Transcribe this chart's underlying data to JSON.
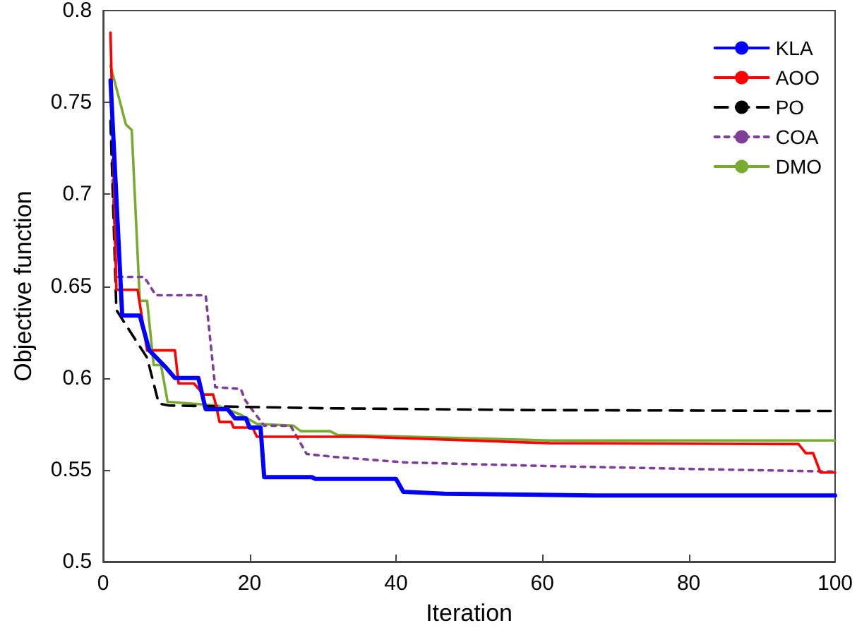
{
  "chart_data": {
    "type": "line",
    "xlabel": "Iteration",
    "ylabel": "Objective function",
    "xlim": [
      0,
      100
    ],
    "xticks": [
      0,
      20,
      40,
      60,
      80,
      100
    ],
    "ylim": [
      0.5,
      0.8
    ],
    "yticks": [
      0.5,
      0.55,
      0.6,
      0.65,
      0.7,
      0.75,
      0.8
    ],
    "grid": false,
    "legend": "top right",
    "marker": "none",
    "series": [
      {
        "name": "KLA",
        "color": "#0000ff",
        "line_style": "solid",
        "x": [
          1,
          2.6,
          5,
          6.3,
          8.5,
          9.8,
          13,
          14,
          17,
          18,
          19.5,
          20,
          21.5,
          22,
          28.5,
          29,
          40,
          41,
          46.6,
          67,
          100
        ],
        "values": [
          0.762,
          0.634,
          0.634,
          0.615,
          0.606,
          0.6,
          0.6,
          0.583,
          0.583,
          0.578,
          0.578,
          0.573,
          0.573,
          0.546,
          0.546,
          0.545,
          0.545,
          0.538,
          0.537,
          0.536,
          0.536
        ]
      },
      {
        "name": "AOO",
        "color": "#ff0000",
        "line_style": "solid",
        "x": [
          1,
          1.8,
          4.7,
          6,
          9.8,
          10.3,
          12.4,
          13.7,
          15,
          15.3,
          15.9,
          17.5,
          17.8,
          20.4,
          21,
          35.5,
          61,
          95,
          96,
          97,
          98,
          100
        ],
        "values": [
          0.788,
          0.648,
          0.648,
          0.615,
          0.615,
          0.597,
          0.597,
          0.591,
          0.591,
          0.587,
          0.576,
          0.576,
          0.573,
          0.573,
          0.568,
          0.568,
          0.5645,
          0.564,
          0.559,
          0.559,
          0.5485,
          0.5485
        ]
      },
      {
        "name": "PO",
        "color": "#000000",
        "line_style": "dashed",
        "x": [
          1,
          1.8,
          3.4,
          6,
          7.6,
          9,
          30,
          58.7,
          100
        ],
        "values": [
          0.74,
          0.637,
          0.627,
          0.611,
          0.586,
          0.585,
          0.5835,
          0.5825,
          0.582
        ]
      },
      {
        "name": "COA",
        "color": "#7f3f98",
        "line_style": "dotted",
        "x": [
          1,
          1.8,
          5.6,
          7.2,
          14,
          15.3,
          18.8,
          19.4,
          20.1,
          22,
          25.6,
          27.8,
          31.6,
          41.3,
          61,
          83.6,
          100
        ],
        "values": [
          0.74,
          0.655,
          0.655,
          0.645,
          0.645,
          0.595,
          0.594,
          0.588,
          0.584,
          0.574,
          0.574,
          0.5586,
          0.557,
          0.554,
          0.552,
          0.5502,
          0.549
        ]
      },
      {
        "name": "DMO",
        "color": "#77ac30",
        "line_style": "solid",
        "x": [
          1,
          3.1,
          3.9,
          5,
          6,
          6.9,
          7.9,
          8.8,
          15.6,
          18.8,
          21,
          26,
          27,
          31,
          32,
          61,
          100
        ],
        "values": [
          0.77,
          0.738,
          0.735,
          0.642,
          0.642,
          0.607,
          0.607,
          0.587,
          0.585,
          0.58,
          0.575,
          0.574,
          0.571,
          0.571,
          0.569,
          0.566,
          0.566
        ]
      }
    ]
  }
}
